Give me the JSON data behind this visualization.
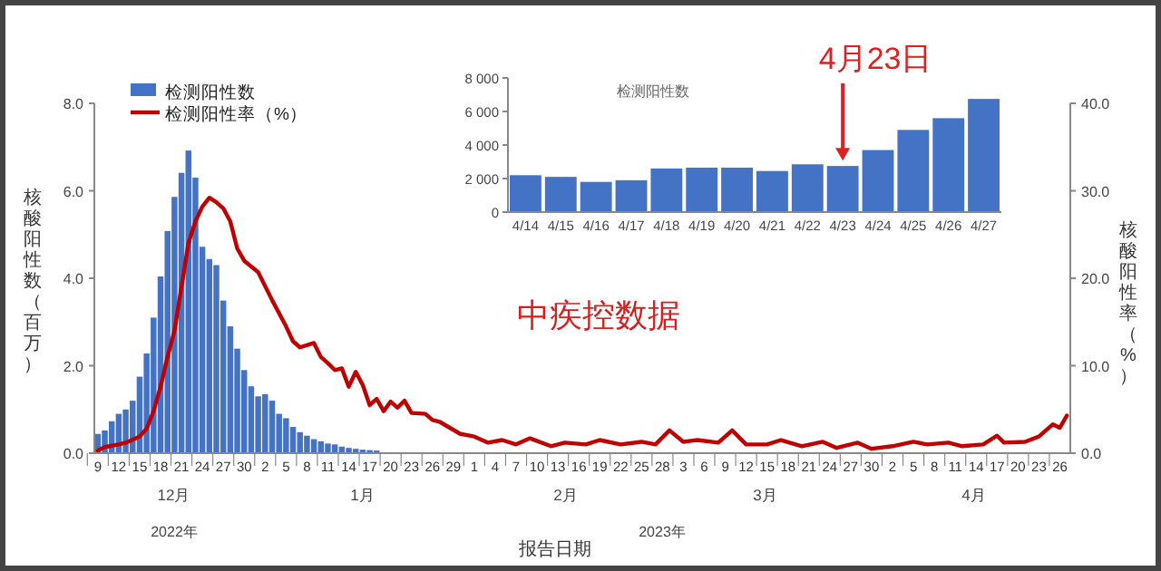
{
  "chart_data": [
    {
      "type": "bar",
      "legend": "top left",
      "xlabel": "报告日期",
      "ylabel": "核酸阳性数（百万）",
      "y2label": "核酸阳性率（%）",
      "xlim": [
        "2022-12-09",
        "2023-04-27"
      ],
      "xticks": [
        {
          "value": "2022-12-09",
          "label": "9"
        },
        {
          "value": "2022-12-12",
          "label": "12"
        },
        {
          "value": "2022-12-15",
          "label": "15"
        },
        {
          "value": "2022-12-18",
          "label": "18"
        },
        {
          "value": "2022-12-21",
          "label": "21"
        },
        {
          "value": "2022-12-24",
          "label": "24"
        },
        {
          "value": "2022-12-27",
          "label": "27"
        },
        {
          "value": "2022-12-30",
          "label": "30"
        },
        {
          "value": "2023-01-02",
          "label": "2"
        },
        {
          "value": "2023-01-05",
          "label": "5"
        },
        {
          "value": "2023-01-08",
          "label": "8"
        },
        {
          "value": "2023-01-11",
          "label": "11"
        },
        {
          "value": "2023-01-14",
          "label": "14"
        },
        {
          "value": "2023-01-17",
          "label": "17"
        },
        {
          "value": "2023-01-20",
          "label": "20"
        },
        {
          "value": "2023-01-23",
          "label": "23"
        },
        {
          "value": "2023-01-26",
          "label": "26"
        },
        {
          "value": "2023-01-29",
          "label": "29"
        },
        {
          "value": "2023-02-01",
          "label": "1"
        },
        {
          "value": "2023-02-04",
          "label": "4"
        },
        {
          "value": "2023-02-07",
          "label": "7"
        },
        {
          "value": "2023-02-10",
          "label": "10"
        },
        {
          "value": "2023-02-13",
          "label": "13"
        },
        {
          "value": "2023-02-16",
          "label": "16"
        },
        {
          "value": "2023-02-19",
          "label": "19"
        },
        {
          "value": "2023-02-22",
          "label": "22"
        },
        {
          "value": "2023-02-25",
          "label": "25"
        },
        {
          "value": "2023-02-28",
          "label": "28"
        },
        {
          "value": "2023-03-03",
          "label": "3"
        },
        {
          "value": "2023-03-06",
          "label": "6"
        },
        {
          "value": "2023-03-09",
          "label": "9"
        },
        {
          "value": "2023-03-12",
          "label": "12"
        },
        {
          "value": "2023-03-15",
          "label": "15"
        },
        {
          "value": "2023-03-18",
          "label": "18"
        },
        {
          "value": "2023-03-21",
          "label": "21"
        },
        {
          "value": "2023-03-24",
          "label": "24"
        },
        {
          "value": "2023-03-27",
          "label": "27"
        },
        {
          "value": "2023-03-30",
          "label": "30"
        },
        {
          "value": "2023-04-02",
          "label": "2"
        },
        {
          "value": "2023-04-05",
          "label": "5"
        },
        {
          "value": "2023-04-08",
          "label": "8"
        },
        {
          "value": "2023-04-11",
          "label": "11"
        },
        {
          "value": "2023-04-14",
          "label": "14"
        },
        {
          "value": "2023-04-17",
          "label": "17"
        },
        {
          "value": "2023-04-20",
          "label": "20"
        },
        {
          "value": "2023-04-23",
          "label": "23"
        },
        {
          "value": "2023-04-26",
          "label": "26"
        }
      ],
      "ylim": [
        0,
        8
      ],
      "yticks": [
        {
          "value": 0,
          "label": "0.0"
        },
        {
          "value": 2,
          "label": "2.0"
        },
        {
          "value": 4,
          "label": "4.0"
        },
        {
          "value": 6,
          "label": "6.0"
        },
        {
          "value": 8,
          "label": "8.0"
        }
      ],
      "y2lim": [
        0,
        40
      ],
      "y2ticks": [
        {
          "value": 0,
          "label": "0.0"
        },
        {
          "value": 10,
          "label": "10.0"
        },
        {
          "value": 20,
          "label": "20.0"
        },
        {
          "value": 30,
          "label": "30.0"
        },
        {
          "value": 40,
          "label": "40.0"
        }
      ],
      "annotations": [
        "12月",
        "1月",
        "2月",
        "3月",
        "4月",
        "2022年",
        "2023年",
        "中疾控数据"
      ],
      "series": [
        {
          "name": "检测阳性数",
          "color": "#4472c4",
          "x": [
            "2022-12-09",
            "2022-12-10",
            "2022-12-11",
            "2022-12-12",
            "2022-12-13",
            "2022-12-14",
            "2022-12-15",
            "2022-12-16",
            "2022-12-17",
            "2022-12-18",
            "2022-12-19",
            "2022-12-20",
            "2022-12-21",
            "2022-12-22",
            "2022-12-23",
            "2022-12-24",
            "2022-12-25",
            "2022-12-26",
            "2022-12-27",
            "2022-12-28",
            "2022-12-29",
            "2022-12-30",
            "2022-12-31",
            "2023-01-01",
            "2023-01-02",
            "2023-01-03",
            "2023-01-04",
            "2023-01-05",
            "2023-01-06",
            "2023-01-07",
            "2023-01-08",
            "2023-01-09",
            "2023-01-10",
            "2023-01-11",
            "2023-01-12",
            "2023-01-13",
            "2023-01-14",
            "2023-01-15",
            "2023-01-16",
            "2023-01-17",
            "2023-01-18"
          ],
          "values": [
            0.44,
            0.52,
            0.73,
            0.9,
            1.0,
            1.2,
            1.75,
            2.28,
            3.1,
            4.04,
            5.08,
            5.86,
            6.41,
            6.92,
            6.3,
            4.72,
            4.44,
            4.3,
            3.49,
            2.9,
            2.39,
            1.9,
            1.53,
            1.3,
            1.35,
            1.2,
            0.9,
            0.8,
            0.6,
            0.48,
            0.4,
            0.32,
            0.27,
            0.22,
            0.2,
            0.15,
            0.12,
            0.1,
            0.08,
            0.07,
            0.06
          ]
        },
        {
          "name": "检测阳性率（%）",
          "type": "line",
          "axis": "y2",
          "color": "#c00000",
          "x": [
            "2022-12-09",
            "2022-12-10",
            "2022-12-12",
            "2022-12-13",
            "2022-12-15",
            "2022-12-16",
            "2022-12-17",
            "2022-12-18",
            "2022-12-19",
            "2022-12-20",
            "2022-12-21",
            "2022-12-22",
            "2022-12-23",
            "2022-12-24",
            "2022-12-25",
            "2022-12-26",
            "2022-12-27",
            "2022-12-28",
            "2022-12-29",
            "2022-12-30",
            "2023-01-01",
            "2023-01-03",
            "2023-01-05",
            "2023-01-06",
            "2023-01-07",
            "2023-01-09",
            "2023-01-10",
            "2023-01-11",
            "2023-01-12",
            "2023-01-13",
            "2023-01-14",
            "2023-01-15",
            "2023-01-16",
            "2023-01-17",
            "2023-01-18",
            "2023-01-19",
            "2023-01-20",
            "2023-01-21",
            "2023-01-22",
            "2023-01-23",
            "2023-01-25",
            "2023-01-26",
            "2023-01-27",
            "2023-01-30",
            "2023-02-01",
            "2023-02-03",
            "2023-02-05",
            "2023-02-07",
            "2023-02-09",
            "2023-02-12",
            "2023-02-14",
            "2023-02-17",
            "2023-02-19",
            "2023-02-22",
            "2023-02-25",
            "2023-02-27",
            "2023-03-01",
            "2023-03-03",
            "2023-03-05",
            "2023-03-08",
            "2023-03-10",
            "2023-03-12",
            "2023-03-15",
            "2023-03-17",
            "2023-03-20",
            "2023-03-23",
            "2023-03-25",
            "2023-03-28",
            "2023-03-30",
            "2023-04-02",
            "2023-04-05",
            "2023-04-07",
            "2023-04-10",
            "2023-04-12",
            "2023-04-15",
            "2023-04-17",
            "2023-04-18",
            "2023-04-21",
            "2023-04-23",
            "2023-04-25",
            "2023-04-26",
            "2023-04-27"
          ],
          "values": [
            0.3,
            0.7,
            1.0,
            1.2,
            1.9,
            2.8,
            4.8,
            7.6,
            11,
            14,
            19,
            24,
            26.5,
            28.2,
            29.2,
            28.7,
            28,
            26.5,
            23.4,
            22,
            20.7,
            17.5,
            14.5,
            12.8,
            12.1,
            12.6,
            11,
            10.3,
            9.5,
            9.7,
            7.6,
            9.3,
            7.8,
            5.5,
            6.2,
            4.8,
            5.9,
            5.2,
            6.0,
            4.6,
            4.5,
            3.8,
            3.6,
            2.2,
            1.9,
            1.2,
            1.5,
            1.0,
            1.7,
            0.8,
            1.2,
            1.0,
            1.5,
            1.0,
            1.3,
            1.0,
            2.6,
            1.3,
            1.5,
            1.2,
            2.6,
            1.0,
            1.0,
            1.5,
            0.8,
            1.3,
            0.6,
            1.2,
            0.5,
            0.8,
            1.3,
            1.0,
            1.2,
            0.8,
            1.0,
            2.0,
            1.2,
            1.3,
            1.9,
            3.3,
            2.9,
            4.3
          ]
        }
      ]
    },
    {
      "type": "bar",
      "title": "检测阳性数",
      "color": "#4472c4",
      "categories": [
        "4/14",
        "4/15",
        "4/16",
        "4/17",
        "4/18",
        "4/19",
        "4/20",
        "4/21",
        "4/22",
        "4/23",
        "4/24",
        "4/25",
        "4/26",
        "4/27"
      ],
      "values": [
        2200,
        2100,
        1800,
        1900,
        2600,
        2650,
        2650,
        2450,
        2850,
        2750,
        3700,
        4900,
        5600,
        6750
      ],
      "ylim": [
        0,
        8000
      ],
      "yticks": [
        0,
        {
          "value": 2000,
          "label": "2 000"
        },
        {
          "value": 4000,
          "label": "4 000"
        },
        {
          "value": 6000,
          "label": "6 000"
        },
        {
          "value": 8000,
          "label": "8 000"
        }
      ],
      "annotations": [
        {
          "text": "4月23日",
          "x": "4/23",
          "y": 2750
        }
      ]
    }
  ]
}
